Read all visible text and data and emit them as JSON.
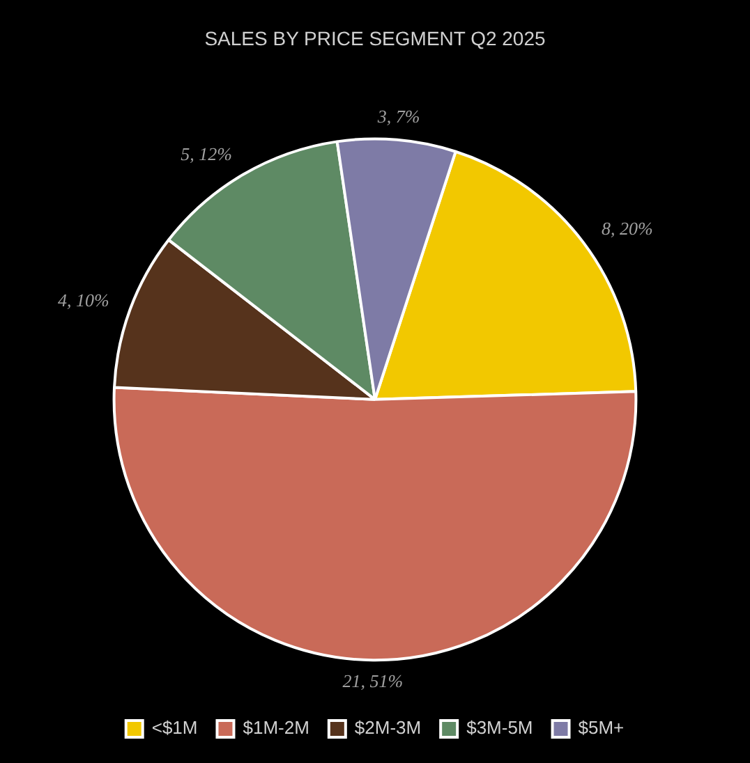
{
  "chart_data": {
    "type": "pie",
    "title": "SALES BY PRICE SEGMENT Q2 2025",
    "categories": [
      "<$1M",
      "$1M-2M",
      "$2M-3M",
      "$3M-5M",
      "$5M+"
    ],
    "values": [
      8,
      21,
      4,
      5,
      3
    ],
    "colors": [
      "#f2c800",
      "#c96a58",
      "#56331c",
      "#5e8a64",
      "#7e7ba6"
    ],
    "value_labels": [
      "8, 20%",
      "21, 51%",
      "4, 10%",
      "5, 12%",
      "3, 7%"
    ],
    "legend": "bottom"
  }
}
